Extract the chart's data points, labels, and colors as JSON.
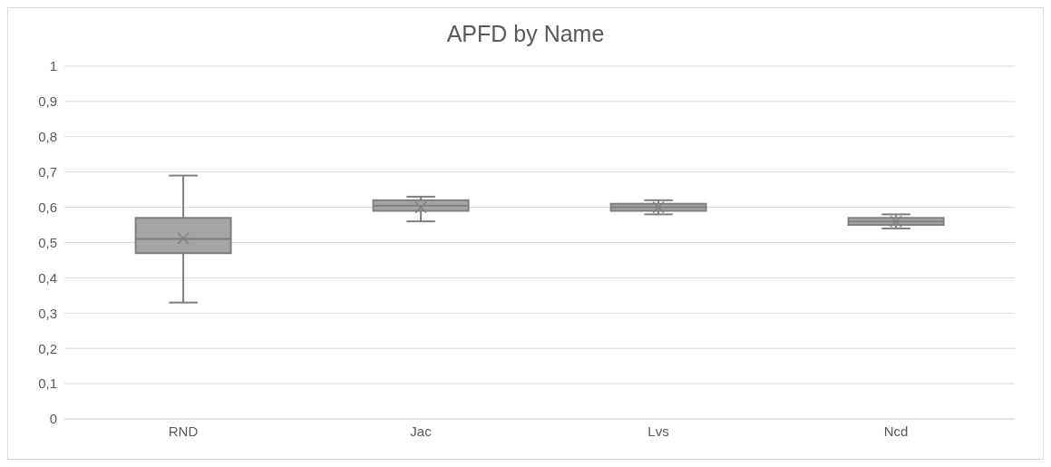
{
  "chart_data": {
    "type": "box",
    "title": "APFD by Name",
    "categories": [
      "RND",
      "Jac",
      "Lvs",
      "Ncd"
    ],
    "color": "#a5a5a5",
    "boxes": [
      {
        "low": 0.33,
        "q1": 0.47,
        "median": 0.51,
        "q3": 0.57,
        "high": 0.69,
        "mean": 0.512
      },
      {
        "low": 0.56,
        "q1": 0.59,
        "median": 0.605,
        "q3": 0.62,
        "high": 0.63,
        "mean": 0.6
      },
      {
        "low": 0.58,
        "q1": 0.59,
        "median": 0.6,
        "q3": 0.61,
        "high": 0.62,
        "mean": 0.6
      },
      {
        "low": 0.54,
        "q1": 0.55,
        "median": 0.56,
        "q3": 0.57,
        "high": 0.58,
        "mean": 0.56
      }
    ],
    "ylim": [
      0,
      1
    ],
    "yticks": [
      {
        "value": 0,
        "label": "0"
      },
      {
        "value": 0.1,
        "label": "0,1"
      },
      {
        "value": 0.2,
        "label": "0,2"
      },
      {
        "value": 0.3,
        "label": "0,3"
      },
      {
        "value": 0.4,
        "label": "0,4"
      },
      {
        "value": 0.5,
        "label": "0,5"
      },
      {
        "value": 0.6,
        "label": "0,6"
      },
      {
        "value": 0.7,
        "label": "0,7"
      },
      {
        "value": 0.8,
        "label": "0,8"
      },
      {
        "value": 0.9,
        "label": "0,9"
      },
      {
        "value": 1,
        "label": "1"
      }
    ],
    "grid": "y",
    "legend": false
  }
}
